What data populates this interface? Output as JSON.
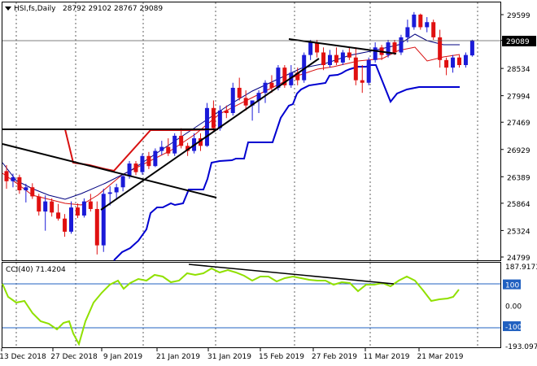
{
  "header": {
    "symbol_label": "HSI,fs,Daily",
    "ohlc": "28792 29102 28767 29089",
    "menu_icon": "triangle-down-icon"
  },
  "indicator": {
    "label": "CCI(40) 71.4204"
  },
  "colors": {
    "bull": "#1a1ad8",
    "bear": "#e01010",
    "line_red": "#d81010",
    "line_navy": "#000080",
    "line_blue": "#0000d0",
    "cci": "#90e000",
    "level": "#2060c0",
    "grid": "#606060"
  },
  "chart_data": [
    {
      "type": "candlestick",
      "title": "HSI,fs,Daily",
      "ohlc_last": {
        "open": 28792,
        "high": 29102,
        "low": 28767,
        "close": 29089
      },
      "ylim": [
        24799,
        29850
      ],
      "y_ticks": [
        "29599",
        "29089",
        "28534",
        "27994",
        "27469",
        "26929",
        "26389",
        "25864",
        "25324",
        "24799"
      ],
      "current_price_label": "29089",
      "x_ticks": [
        "13 Dec 2018",
        "27 Dec 2018",
        "9 Jan 2019",
        "21 Jan 2019",
        "31 Jan 2019",
        "15 Feb 2019",
        "27 Feb 2019",
        "11 Mar 2019",
        "21 Mar 2019"
      ],
      "candles": [
        [
          26500,
          26620,
          26150,
          26300
        ],
        [
          26300,
          26450,
          26180,
          26380
        ],
        [
          26380,
          26430,
          26050,
          26120
        ],
        [
          26120,
          26250,
          25880,
          26180
        ],
        [
          26180,
          26260,
          25950,
          26000
        ],
        [
          26000,
          26050,
          25620,
          25700
        ],
        [
          25700,
          26020,
          25320,
          25900
        ],
        [
          25900,
          25960,
          25600,
          25680
        ],
        [
          25680,
          25850,
          25520,
          25560
        ],
        [
          25560,
          25650,
          25200,
          25300
        ],
        [
          25300,
          25900,
          25260,
          25780
        ],
        [
          25780,
          25860,
          25570,
          25620
        ],
        [
          25620,
          25960,
          25580,
          25900
        ],
        [
          25900,
          26050,
          25700,
          25750
        ],
        [
          25750,
          25900,
          24850,
          25030
        ],
        [
          25030,
          26150,
          24900,
          26050
        ],
        [
          26050,
          26200,
          25820,
          26080
        ],
        [
          26080,
          26250,
          25950,
          26180
        ],
        [
          26180,
          26450,
          26100,
          26400
        ],
        [
          26400,
          26700,
          26350,
          26650
        ],
        [
          26650,
          26700,
          26420,
          26480
        ],
        [
          26480,
          26850,
          26430,
          26800
        ],
        [
          26800,
          26880,
          26540,
          26600
        ],
        [
          26600,
          26950,
          26580,
          26900
        ],
        [
          26900,
          27100,
          26820,
          26980
        ],
        [
          26980,
          27150,
          26800,
          26850
        ],
        [
          26850,
          27250,
          26800,
          27200
        ],
        [
          27200,
          27350,
          26950,
          27000
        ],
        [
          27000,
          27060,
          26800,
          26900
        ],
        [
          26900,
          27250,
          26850,
          27150
        ],
        [
          27150,
          27250,
          26900,
          27000
        ],
        [
          27000,
          27850,
          26980,
          27750
        ],
        [
          27750,
          27900,
          27300,
          27350
        ],
        [
          27350,
          27800,
          27300,
          27700
        ],
        [
          27700,
          27800,
          27550,
          27650
        ],
        [
          27650,
          28250,
          27600,
          28150
        ],
        [
          28150,
          28350,
          27900,
          27950
        ],
        [
          27950,
          28100,
          27700,
          27800
        ],
        [
          27800,
          27900,
          27500,
          27900
        ],
        [
          27900,
          28100,
          27650,
          28050
        ],
        [
          28050,
          28300,
          27850,
          28250
        ],
        [
          28250,
          28400,
          28050,
          28150
        ],
        [
          28150,
          28600,
          28100,
          28550
        ],
        [
          28550,
          28600,
          28150,
          28200
        ],
        [
          28200,
          28600,
          28150,
          28450
        ],
        [
          28450,
          28550,
          28200,
          28300
        ],
        [
          28300,
          28850,
          28250,
          28800
        ],
        [
          28800,
          29100,
          28700,
          29050
        ],
        [
          29050,
          29100,
          28750,
          28850
        ],
        [
          28850,
          28950,
          28500,
          28600
        ],
        [
          28600,
          28900,
          28550,
          28800
        ],
        [
          28800,
          28950,
          28600,
          28650
        ],
        [
          28650,
          28900,
          28600,
          28850
        ],
        [
          28850,
          28950,
          28700,
          28750
        ],
        [
          28750,
          28950,
          28200,
          28300
        ],
        [
          28300,
          28600,
          28050,
          28250
        ],
        [
          28250,
          28750,
          28200,
          28700
        ],
        [
          28700,
          29050,
          28650,
          28950
        ],
        [
          28950,
          29000,
          28700,
          28800
        ],
        [
          28800,
          29100,
          28750,
          29050
        ],
        [
          29050,
          29100,
          28800,
          28850
        ],
        [
          28850,
          29200,
          28800,
          29150
        ],
        [
          29150,
          29500,
          29050,
          29350
        ],
        [
          29350,
          29650,
          29300,
          29600
        ],
        [
          29600,
          29620,
          29300,
          29350
        ],
        [
          29350,
          29550,
          29250,
          29450
        ],
        [
          29450,
          29500,
          29100,
          29150
        ],
        [
          29150,
          29300,
          28550,
          28700
        ],
        [
          28700,
          28750,
          28400,
          28550
        ],
        [
          28550,
          28800,
          28450,
          28750
        ],
        [
          28750,
          28800,
          28550,
          28600
        ],
        [
          28600,
          28850,
          28550,
          28800
        ],
        [
          28792,
          29102,
          28767,
          29089
        ]
      ]
    },
    {
      "type": "line",
      "title": "CCI(40) 71.4204",
      "ylim": [
        -193.097,
        187.9173
      ],
      "y_ticks": [
        "187.9173",
        "100",
        "0.00",
        "-100",
        "-193.097"
      ],
      "levels": [
        100,
        -100
      ]
    }
  ]
}
